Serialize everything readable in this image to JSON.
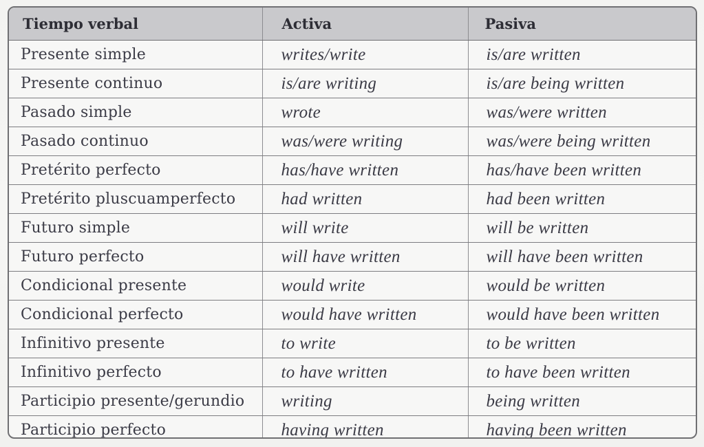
{
  "table": {
    "headers": [
      "Tiempo verbal",
      "Activa",
      "Pasiva"
    ],
    "rows": [
      {
        "tense": "Presente simple",
        "active": "writes/write",
        "passive": "is/are written"
      },
      {
        "tense": "Presente continuo",
        "active": "is/are writing",
        "passive": "is/are being written"
      },
      {
        "tense": "Pasado simple",
        "active": "wrote",
        "passive": "was/were written"
      },
      {
        "tense": "Pasado continuo",
        "active": "was/were writing",
        "passive": "was/were being written"
      },
      {
        "tense": "Pretérito perfecto",
        "active": "has/have written",
        "passive": "has/have been written"
      },
      {
        "tense": "Pretérito pluscuamperfecto",
        "active": "had written",
        "passive": "had been written"
      },
      {
        "tense": "Futuro simple",
        "active": "will write",
        "passive": "will be written"
      },
      {
        "tense": "Futuro perfecto",
        "active": "will have written",
        "passive": "will have been written"
      },
      {
        "tense": "Condicional presente",
        "active": "would write",
        "passive": "would be written"
      },
      {
        "tense": "Condicional perfecto",
        "active": "would have written",
        "passive": "would have been written"
      },
      {
        "tense": "Infinitivo presente",
        "active": "to write",
        "passive": "to be written"
      },
      {
        "tense": "Infinitivo perfecto",
        "active": "to have written",
        "passive": "to have been written"
      },
      {
        "tense": "Participio presente/gerundio",
        "active": "writing",
        "passive": "being written"
      },
      {
        "tense": "Participio perfecto",
        "active": "having written",
        "passive": "having been written"
      }
    ]
  }
}
